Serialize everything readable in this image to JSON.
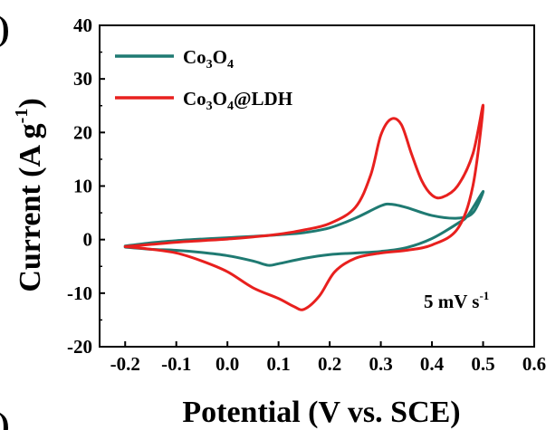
{
  "chart_data": {
    "type": "line",
    "xlabel": "Potential (V vs. SCE)",
    "ylabel_main": "Current (A g",
    "ylabel_sup": "-1",
    "ylabel_close": ")",
    "xlim": [
      -0.25,
      0.6
    ],
    "ylim": [
      -20,
      40
    ],
    "x_ticks": [
      -0.2,
      -0.1,
      0.0,
      0.1,
      0.2,
      0.3,
      0.4,
      0.5,
      0.6
    ],
    "x_tick_labels": [
      "-0.2",
      "-0.1",
      "0.0",
      "0.1",
      "0.2",
      "0.3",
      "0.4",
      "0.5",
      "0.6"
    ],
    "y_ticks": [
      -20,
      -10,
      0,
      10,
      20,
      30,
      40
    ],
    "y_tick_labels": [
      "-20",
      "-10",
      "0",
      "10",
      "20",
      "30",
      "40"
    ],
    "grid": false,
    "legend_position": "top-left",
    "annotation": {
      "main": "5 mV s",
      "sup": "-1"
    },
    "panel_marks": [
      ")",
      ")"
    ],
    "series": [
      {
        "label_parts": [
          {
            "t": "Co",
            "s": "base"
          },
          {
            "t": "3",
            "s": "sub"
          },
          {
            "t": "O",
            "s": "base"
          },
          {
            "t": "4",
            "s": "sub"
          }
        ],
        "color": "#1f7a72",
        "points": [
          [
            -0.2,
            -1.2
          ],
          [
            -0.15,
            -0.6
          ],
          [
            -0.1,
            -0.2
          ],
          [
            -0.05,
            0.1
          ],
          [
            0.0,
            0.35
          ],
          [
            0.05,
            0.6
          ],
          [
            0.1,
            0.9
          ],
          [
            0.15,
            1.3
          ],
          [
            0.2,
            2.2
          ],
          [
            0.25,
            4.0
          ],
          [
            0.3,
            6.3
          ],
          [
            0.32,
            6.6
          ],
          [
            0.35,
            6.0
          ],
          [
            0.4,
            4.5
          ],
          [
            0.45,
            4.0
          ],
          [
            0.48,
            5.0
          ],
          [
            0.5,
            9.0
          ],
          [
            0.47,
            4.5
          ],
          [
            0.45,
            3.0
          ],
          [
            0.4,
            0.2
          ],
          [
            0.35,
            -1.5
          ],
          [
            0.3,
            -2.2
          ],
          [
            0.25,
            -2.5
          ],
          [
            0.2,
            -2.8
          ],
          [
            0.15,
            -3.5
          ],
          [
            0.1,
            -4.5
          ],
          [
            0.08,
            -4.8
          ],
          [
            0.05,
            -4.0
          ],
          [
            0.0,
            -3.0
          ],
          [
            -0.05,
            -2.4
          ],
          [
            -0.1,
            -2.0
          ],
          [
            -0.15,
            -1.8
          ],
          [
            -0.2,
            -1.4
          ]
        ]
      },
      {
        "label_parts": [
          {
            "t": "Co",
            "s": "base"
          },
          {
            "t": "3",
            "s": "sub"
          },
          {
            "t": "O",
            "s": "base"
          },
          {
            "t": "4",
            "s": "sub"
          },
          {
            "t": "@LDH",
            "s": "base"
          }
        ],
        "color": "#e8201e",
        "points": [
          [
            -0.2,
            -1.3
          ],
          [
            -0.15,
            -0.9
          ],
          [
            -0.1,
            -0.5
          ],
          [
            -0.05,
            -0.2
          ],
          [
            0.0,
            0.1
          ],
          [
            0.05,
            0.5
          ],
          [
            0.1,
            1.0
          ],
          [
            0.15,
            1.8
          ],
          [
            0.2,
            3.0
          ],
          [
            0.25,
            6.0
          ],
          [
            0.28,
            12.0
          ],
          [
            0.3,
            19.5
          ],
          [
            0.32,
            22.5
          ],
          [
            0.34,
            21.5
          ],
          [
            0.36,
            16.0
          ],
          [
            0.38,
            11.0
          ],
          [
            0.4,
            8.3
          ],
          [
            0.42,
            7.9
          ],
          [
            0.45,
            10.0
          ],
          [
            0.48,
            16.0
          ],
          [
            0.5,
            25.0
          ],
          [
            0.48,
            10.0
          ],
          [
            0.45,
            2.0
          ],
          [
            0.4,
            -1.0
          ],
          [
            0.35,
            -2.0
          ],
          [
            0.3,
            -2.5
          ],
          [
            0.25,
            -3.5
          ],
          [
            0.21,
            -6.0
          ],
          [
            0.18,
            -10.5
          ],
          [
            0.15,
            -13.0
          ],
          [
            0.13,
            -12.5
          ],
          [
            0.1,
            -11.0
          ],
          [
            0.05,
            -9.0
          ],
          [
            0.0,
            -6.0
          ],
          [
            -0.05,
            -4.0
          ],
          [
            -0.1,
            -2.5
          ],
          [
            -0.15,
            -1.8
          ],
          [
            -0.2,
            -1.3
          ]
        ]
      }
    ]
  }
}
